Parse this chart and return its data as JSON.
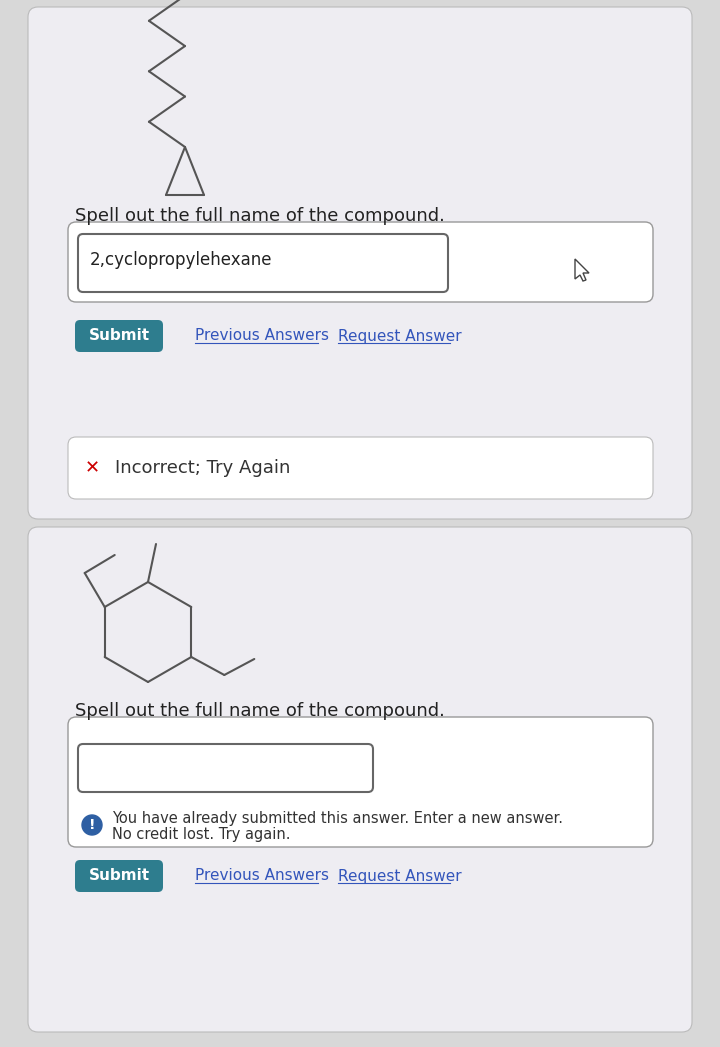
{
  "bg_color": "#d8d8d8",
  "panel1": {
    "bg_color": "#eeedf2",
    "question": "Spell out the full name of the compound.",
    "answer_text": "2,cyclopropylehexane",
    "submit_btn_color": "#2e7d8e",
    "submit_btn_text": "Submit",
    "links": [
      "Previous Answers",
      "Request Answer"
    ],
    "error_text": "Incorrect; Try Again",
    "error_x_color": "#cc0000"
  },
  "panel2": {
    "bg_color": "#eeedf2",
    "question": "Spell out the full name of the compound.",
    "answer_text": "",
    "submit_btn_color": "#2e7d8e",
    "submit_btn_text": "Submit",
    "links": [
      "Previous Answers",
      "Request Answer"
    ],
    "info_line1": "You have already submitted this answer. Enter a new answer.",
    "info_line2": "No credit lost. Try again.",
    "info_icon_color": "#2e5fa3"
  },
  "link_color": "#3355bb",
  "question_fontsize": 13,
  "answer_fontsize": 12,
  "btn_fontsize": 11
}
